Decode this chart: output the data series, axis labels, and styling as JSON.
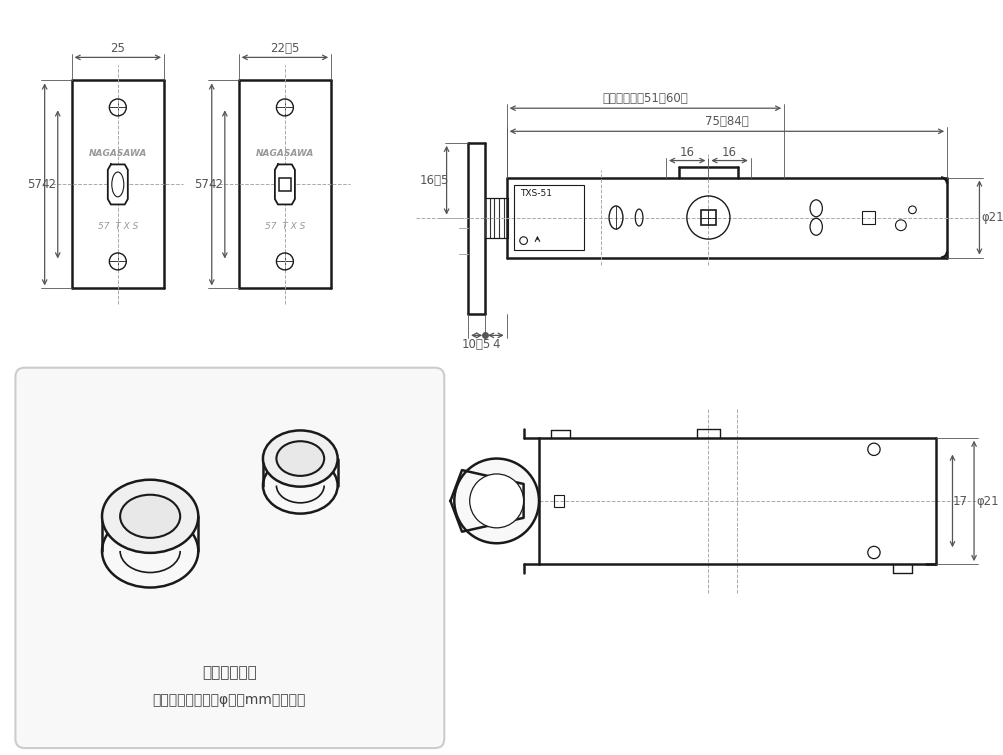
{
  "bg_color": "#ffffff",
  "line_color": "#1a1a1a",
  "dim_color": "#555555",
  "text_color": "#333333"
}
